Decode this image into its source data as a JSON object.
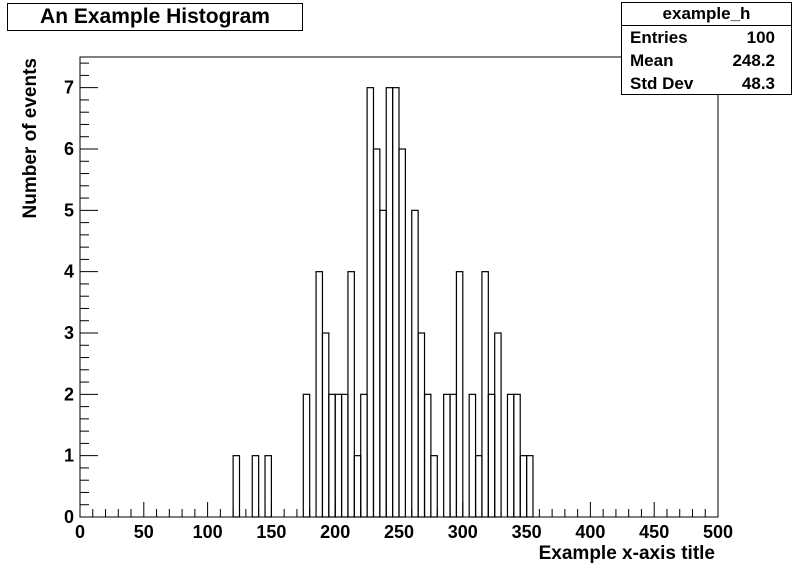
{
  "title": "An Example Histogram",
  "stats_box": {
    "name": "example_h",
    "rows": [
      {
        "label": "Entries",
        "value": "100"
      },
      {
        "label": "Mean",
        "value": "248.2"
      },
      {
        "label": "Std Dev",
        "value": "48.3"
      }
    ]
  },
  "chart_data": {
    "type": "bar",
    "title": "An Example Histogram",
    "xlabel": "Example x-axis title",
    "ylabel": "Number of events",
    "xlim": [
      0,
      500
    ],
    "ylim": [
      0,
      7.5
    ],
    "bin_width": 5,
    "x_ticks": [
      "0",
      "50",
      "100",
      "150",
      "200",
      "250",
      "300",
      "350",
      "400",
      "450",
      "500"
    ],
    "y_ticks": [
      "0",
      "1",
      "2",
      "3",
      "4",
      "5",
      "6",
      "7"
    ],
    "bins": [
      {
        "x": 120,
        "value": 1
      },
      {
        "x": 135,
        "value": 1
      },
      {
        "x": 145,
        "value": 1
      },
      {
        "x": 175,
        "value": 2
      },
      {
        "x": 185,
        "value": 4
      },
      {
        "x": 190,
        "value": 3
      },
      {
        "x": 195,
        "value": 2
      },
      {
        "x": 200,
        "value": 2
      },
      {
        "x": 205,
        "value": 2
      },
      {
        "x": 210,
        "value": 4
      },
      {
        "x": 215,
        "value": 1
      },
      {
        "x": 220,
        "value": 2
      },
      {
        "x": 225,
        "value": 7
      },
      {
        "x": 230,
        "value": 6
      },
      {
        "x": 235,
        "value": 5
      },
      {
        "x": 240,
        "value": 7
      },
      {
        "x": 245,
        "value": 7
      },
      {
        "x": 250,
        "value": 6
      },
      {
        "x": 260,
        "value": 5
      },
      {
        "x": 265,
        "value": 3
      },
      {
        "x": 270,
        "value": 2
      },
      {
        "x": 275,
        "value": 1
      },
      {
        "x": 285,
        "value": 2
      },
      {
        "x": 290,
        "value": 2
      },
      {
        "x": 295,
        "value": 4
      },
      {
        "x": 305,
        "value": 2
      },
      {
        "x": 310,
        "value": 1
      },
      {
        "x": 315,
        "value": 4
      },
      {
        "x": 320,
        "value": 2
      },
      {
        "x": 325,
        "value": 3
      },
      {
        "x": 335,
        "value": 2
      },
      {
        "x": 340,
        "value": 2
      },
      {
        "x": 345,
        "value": 1
      },
      {
        "x": 350,
        "value": 1
      }
    ],
    "grid": false,
    "stat_box_position": "top-right"
  }
}
